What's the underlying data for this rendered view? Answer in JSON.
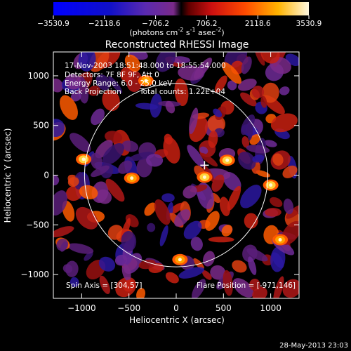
{
  "chart_data": {
    "type": "heatmap",
    "title": "Reconstructed RHESSI Image",
    "xlabel": "Heliocentric X (arcsec)",
    "ylabel": "Heliocentric Y (arcsec)",
    "xlim": [
      -1300,
      1300
    ],
    "ylim": [
      -1240,
      1240
    ],
    "x_ticks": [
      -1000,
      -500,
      0,
      500,
      1000
    ],
    "y_ticks": [
      -1000,
      -500,
      0,
      500,
      1000
    ],
    "colorbar": {
      "min": -3530.9,
      "max": 3530.9,
      "ticks": [
        -3530.9,
        -2118.6,
        -706.2,
        706.2,
        2118.6,
        3530.9
      ],
      "tick_labels": [
        "−3530.9",
        "−2118.6",
        "−706.2",
        "706.2",
        "2118.6",
        "3530.9"
      ],
      "unit_main": "(photons cm",
      "unit_exp1": "-2",
      "unit_mid": " s",
      "unit_exp2": "-1",
      "unit_end": " asec",
      "unit_exp3": "-2",
      "unit_close": ")"
    },
    "annotations": {
      "time_range": "17-Nov-2003 18:51:48.000 to 18:55:54.000",
      "detectors": "Detectors: 7F 8F 9F, Att 0",
      "energy": "Energy Range: 6.0 - 25.0 keV",
      "method": "Back Projection",
      "counts": "Total counts: 1.22E+04",
      "spin_axis": "Spin Axis = [304,57]",
      "flare_position": "Flare Position = [-971,146]"
    },
    "solar_limb": {
      "center": [
        0,
        0
      ],
      "radius": 970
    },
    "crosshair": [
      300,
      100
    ],
    "bright_sources": [
      {
        "x": 1000,
        "y": -100,
        "value": 3100
      },
      {
        "x": 540,
        "y": 150,
        "value": 2900
      },
      {
        "x": 300,
        "y": -20,
        "value": 3000
      },
      {
        "x": -470,
        "y": -30,
        "value": 2700
      },
      {
        "x": -320,
        "y": 950,
        "value": 2100
      },
      {
        "x": -980,
        "y": 160,
        "value": 3500
      },
      {
        "x": 40,
        "y": -850,
        "value": 2000
      },
      {
        "x": 1100,
        "y": -650,
        "value": 1800
      }
    ],
    "footer_date": "28-May-2013 23:03"
  }
}
